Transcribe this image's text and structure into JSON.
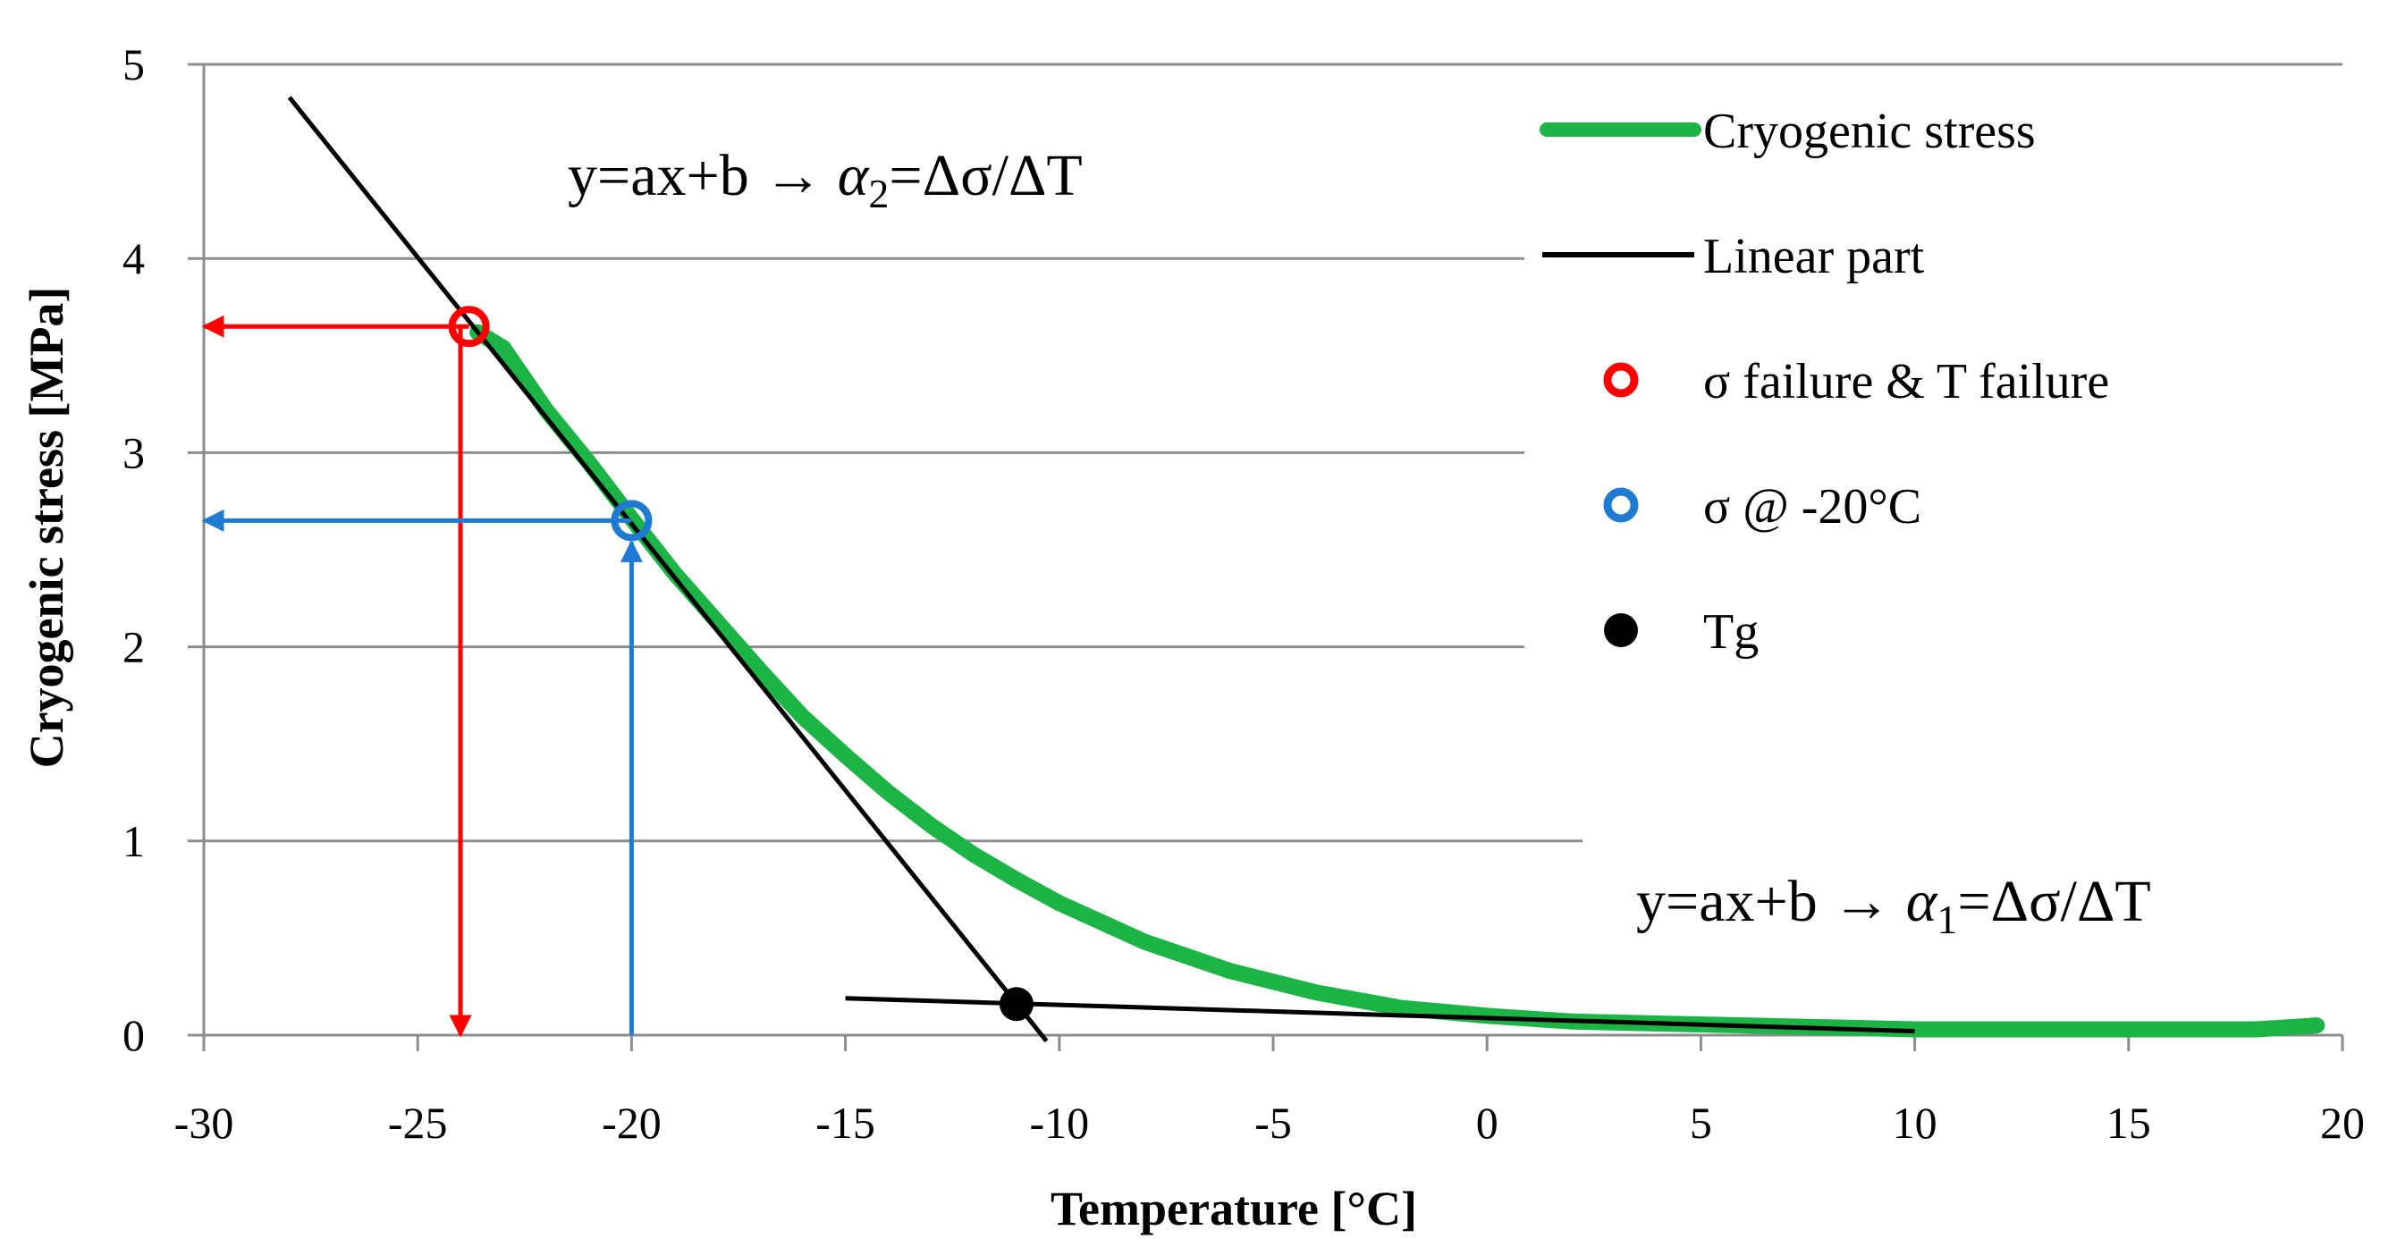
{
  "chart_data": {
    "type": "line",
    "xlabel": "Temperature [°C]",
    "ylabel": "Cryogenic stress [MPa]",
    "xlim": [
      -30,
      20
    ],
    "ylim": [
      0,
      5
    ],
    "x_ticks": [
      "-30",
      "-25",
      "-20",
      "-15",
      "-10",
      "-5",
      "0",
      "5",
      "10",
      "15",
      "20"
    ],
    "y_ticks": [
      "0",
      "1",
      "2",
      "3",
      "4",
      "5"
    ],
    "grid": "horizontal",
    "legend_position": "top-right",
    "legend": [
      "Cryogenic stress",
      "Linear part",
      "σ failure & T failure",
      "σ @ -20°C",
      "Tg"
    ],
    "colors": {
      "cryogenic": "#1db446",
      "linear": "#000000",
      "failure": "#ff0000",
      "at20": "#1f7ad1",
      "tg": "#000000",
      "grid": "#8c8c8c"
    },
    "series": [
      {
        "name": "Cryogenic stress",
        "x": [
          -23.6,
          -23.0,
          -22.0,
          -21.0,
          -20.0,
          -19.0,
          -18.0,
          -17.0,
          -16.0,
          -15.0,
          -14.0,
          -13.0,
          -12.0,
          -11.0,
          -10.0,
          -8.0,
          -6.0,
          -4.0,
          -2.0,
          0.0,
          2.0,
          4.0,
          6.0,
          8.0,
          10.0,
          12.0,
          14.0,
          16.0,
          18.0,
          19.4
        ],
        "y": [
          3.62,
          3.54,
          3.22,
          2.95,
          2.66,
          2.38,
          2.13,
          1.88,
          1.64,
          1.44,
          1.25,
          1.08,
          0.93,
          0.8,
          0.68,
          0.48,
          0.33,
          0.22,
          0.14,
          0.1,
          0.07,
          0.06,
          0.05,
          0.04,
          0.03,
          0.03,
          0.03,
          0.03,
          0.03,
          0.05
        ]
      },
      {
        "name": "Linear part",
        "segments": [
          {
            "x": [
              -28,
              -10.3
            ],
            "y": [
              4.83,
              -0.03
            ]
          },
          {
            "x": [
              -15,
              10
            ],
            "y": [
              0.19,
              0.02
            ]
          }
        ]
      }
    ],
    "points": [
      {
        "name": "σ failure & T failure",
        "x": -23.8,
        "y": 3.65
      },
      {
        "name": "σ @ -20°C",
        "x": -20.0,
        "y": 2.65
      },
      {
        "name": "Tg",
        "x": -11.0,
        "y": 0.16
      }
    ],
    "annotations": {
      "a2": {
        "prefix": "y=ax+b → ",
        "symbol": "α",
        "sub": "2",
        "suffix": "=Δσ/ΔT"
      },
      "a1": {
        "prefix": "y=ax+b → ",
        "symbol": "α",
        "sub": "1",
        "suffix": "=Δσ/ΔT"
      }
    }
  }
}
